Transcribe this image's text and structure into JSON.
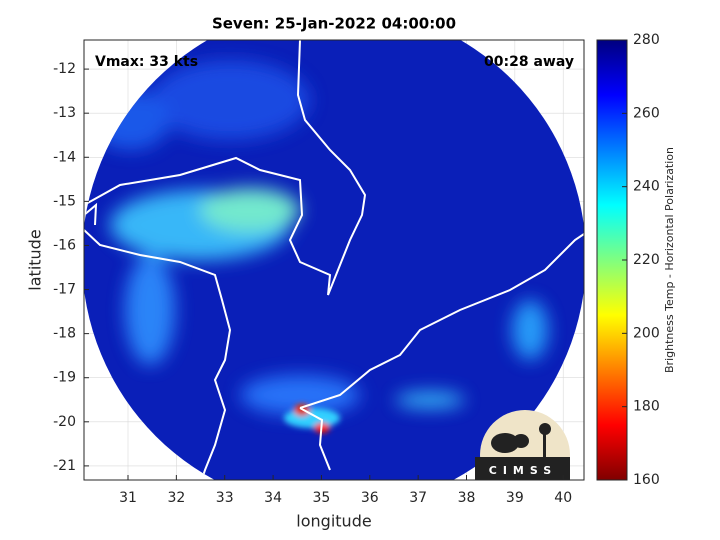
{
  "title": "Seven: 25-Jan-2022 04:00:00",
  "annotations": {
    "vmax": "Vmax: 33 kts",
    "away": "00:28 away"
  },
  "x_axis": {
    "label": "longitude",
    "lim": [
      30.09,
      40.43
    ],
    "ticks": [
      31,
      32,
      33,
      34,
      35,
      36,
      37,
      38,
      39,
      40
    ]
  },
  "y_axis": {
    "label": "latitude",
    "lim": [
      -21.32,
      -11.34
    ],
    "ticks": [
      -12,
      -13,
      -14,
      -15,
      -16,
      -17,
      -18,
      -19,
      -20,
      -21
    ]
  },
  "colorbar": {
    "label": "Brightness Temp - Horizontal Polarization",
    "lim": [
      160,
      280
    ],
    "ticks": [
      160,
      180,
      200,
      220,
      240,
      260,
      280
    ]
  },
  "logo": "CIMSS"
}
